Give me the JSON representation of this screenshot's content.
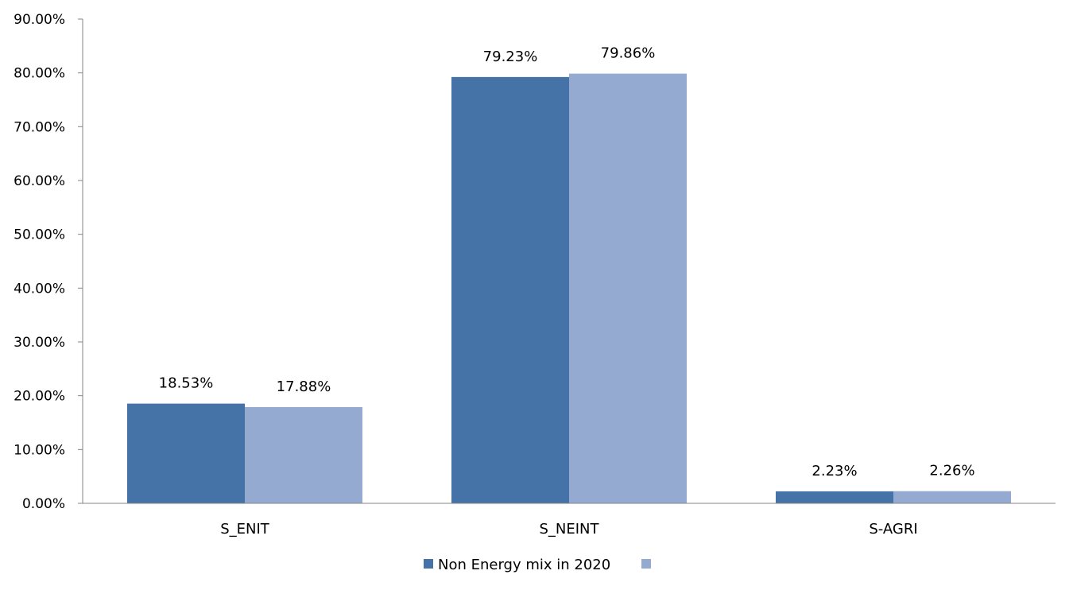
{
  "chart_data": {
    "type": "bar",
    "categories": [
      "S_ENIT",
      "S_NEINT",
      "S-AGRI"
    ],
    "series": [
      {
        "name": "Non Energy mix in 2020",
        "values": [
          18.53,
          79.23,
          2.23
        ],
        "labels": [
          "18.53%",
          "79.23%",
          "2.23%"
        ],
        "color": "#4573A7"
      },
      {
        "values": [
          17.88,
          79.86,
          2.26
        ],
        "labels": [
          "17.88%",
          "79.86%",
          "2.26%"
        ],
        "color": "#95AAD1"
      }
    ],
    "y_ticks": [
      "0.00%",
      "10.00%",
      "20.00%",
      "30.00%",
      "40.00%",
      "50.00%",
      "60.00%",
      "70.00%",
      "80.00%",
      "90.00%"
    ],
    "ylim": [
      0,
      90
    ],
    "grid": false,
    "legend_position": "bottom",
    "axis_color": "#868686"
  }
}
